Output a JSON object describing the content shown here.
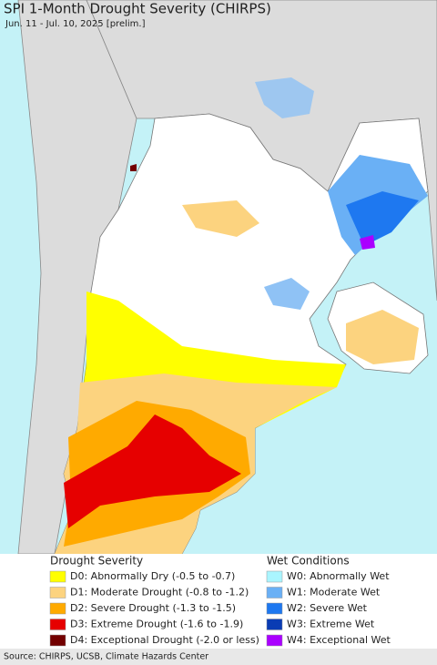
{
  "title": "SPI 1-Month Drought Severity (CHIRPS)",
  "subtitle": "Jun. 11 - Jul. 10, 2025 [prelim.]",
  "legend": {
    "drought": {
      "title": "Drought Severity",
      "items": [
        {
          "label": "D0: Abnormally Dry (-0.5 to -0.7)",
          "color": "#ffff00"
        },
        {
          "label": "D1: Moderate Drought (-0.8 to -1.2)",
          "color": "#fcd37f"
        },
        {
          "label": "D2: Severe Drought (-1.3 to -1.5)",
          "color": "#ffaa00"
        },
        {
          "label": "D3: Extreme Drought (-1.6 to -1.9)",
          "color": "#e60000"
        },
        {
          "label": "D4: Exceptional Drought (-2.0 or less)",
          "color": "#730000"
        }
      ]
    },
    "wet": {
      "title": "Wet Conditions",
      "items": [
        {
          "label": "W0: Abnormally Wet",
          "color": "#aaf5ff"
        },
        {
          "label": "W1: Moderate Wet",
          "color": "#6ab0f5"
        },
        {
          "label": "W2: Severe Wet",
          "color": "#1e78f0"
        },
        {
          "label": "W3: Extreme Wet",
          "color": "#0a3cb4"
        },
        {
          "label": "W4: Exceptional Wet",
          "color": "#aa00ff"
        }
      ]
    }
  },
  "source": "Source: CHIRPS, UCSB, Climate Hazards Center"
}
